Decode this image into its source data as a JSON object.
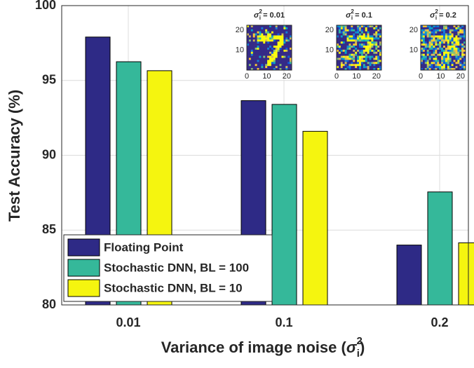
{
  "chart_data": {
    "type": "bar",
    "ylabel": "Test Accuracy (%)",
    "xlabel": {
      "text": "Variance of image noise (",
      "symbol": "σ",
      "sub": "i",
      "sup": "2",
      "close": ")"
    },
    "categories": [
      "0.01",
      "0.1",
      "0.2"
    ],
    "series": [
      {
        "name": "Floating Point",
        "color": "#2e2a86",
        "values": [
          97.9,
          93.65,
          84.0
        ]
      },
      {
        "name": "Stochastic DNN, BL = 100",
        "color": "#35b89a",
        "values": [
          96.25,
          93.4,
          87.55
        ]
      },
      {
        "name": "Stochastic DNN, BL = 10",
        "color": "#f5f50f",
        "values": [
          95.65,
          91.6,
          84.15
        ]
      }
    ],
    "ylim": [
      80,
      100
    ],
    "yticks": [
      80,
      85,
      90,
      95,
      100
    ],
    "grid": true,
    "legend": "lower left",
    "insets": [
      {
        "symbol": "σ",
        "sub": "i",
        "sup": "2",
        "rest": " = 0.01"
      },
      {
        "symbol": "σ",
        "sub": "i",
        "sup": "2",
        "rest": " = 0.1"
      },
      {
        "symbol": "σ",
        "sub": "i",
        "sup": "2",
        "rest": " = 0.2"
      }
    ],
    "inset_xticks": [
      0,
      10,
      20
    ],
    "inset_yticks": [
      10,
      20
    ],
    "inset_lim": [
      0,
      27
    ]
  }
}
